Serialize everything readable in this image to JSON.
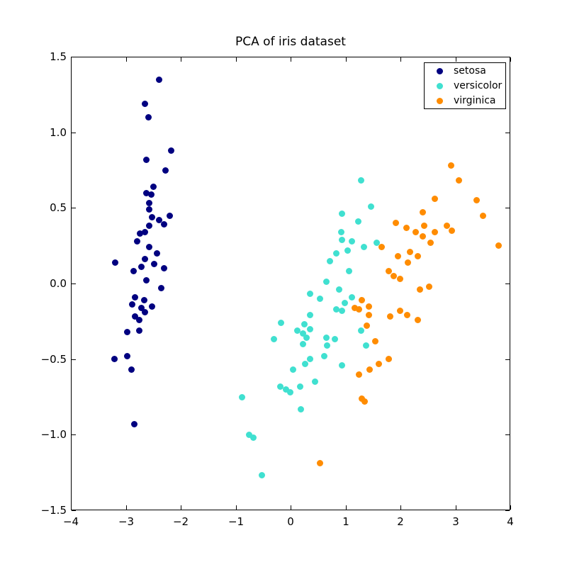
{
  "title": "PCA of iris dataset",
  "colors": {
    "background": "#ffffff",
    "spine": "#000000",
    "text": "#000000",
    "setosa": "#000080",
    "versicolor": "#40e0d0",
    "virginica": "#ff8c00"
  },
  "chart_data": {
    "type": "scatter",
    "title": "PCA of iris dataset",
    "xlabel": "",
    "ylabel": "",
    "xlim": [
      -4,
      4
    ],
    "ylim": [
      -1.5,
      1.5
    ],
    "grid": false,
    "x_ticks": [
      -4,
      -3,
      -2,
      -1,
      0,
      1,
      2,
      3,
      4
    ],
    "x_tick_labels": [
      "−4",
      "−3",
      "−2",
      "−1",
      "0",
      "1",
      "2",
      "3",
      "4"
    ],
    "y_ticks": [
      1.5,
      1.0,
      0.5,
      0.0,
      -0.5,
      -1.0,
      -1.5
    ],
    "y_tick_labels": [
      "1.5",
      "1.0",
      "0.5",
      "0.0",
      "−0.5",
      "−1.0",
      "−1.5"
    ],
    "legend": {
      "position": "upper right"
    },
    "series": [
      {
        "name": "setosa",
        "color": "#000080",
        "points": [
          [
            -2.4,
            1.35
          ],
          [
            -2.65,
            1.19
          ],
          [
            -2.59,
            1.1
          ],
          [
            -2.17,
            0.88
          ],
          [
            -2.63,
            0.82
          ],
          [
            -2.28,
            0.75
          ],
          [
            -2.5,
            0.64
          ],
          [
            -2.62,
            0.6
          ],
          [
            -2.54,
            0.59
          ],
          [
            -2.57,
            0.53
          ],
          [
            -2.57,
            0.49
          ],
          [
            -2.52,
            0.44
          ],
          [
            -2.39,
            0.42
          ],
          [
            -2.2,
            0.45
          ],
          [
            -2.3,
            0.39
          ],
          [
            -2.57,
            0.38
          ],
          [
            -2.74,
            0.33
          ],
          [
            -2.65,
            0.34
          ],
          [
            -2.79,
            0.28
          ],
          [
            -2.58,
            0.24
          ],
          [
            -2.43,
            0.2
          ],
          [
            -2.65,
            0.16
          ],
          [
            -3.2,
            0.14
          ],
          [
            -2.48,
            0.13
          ],
          [
            -2.71,
            0.11
          ],
          [
            -2.3,
            0.1
          ],
          [
            -2.86,
            0.08
          ],
          [
            -2.62,
            0.02
          ],
          [
            -2.36,
            -0.03
          ],
          [
            -2.83,
            -0.09
          ],
          [
            -2.67,
            -0.11
          ],
          [
            -2.88,
            -0.14
          ],
          [
            -2.52,
            -0.15
          ],
          [
            -2.71,
            -0.16
          ],
          [
            -2.65,
            -0.19
          ],
          [
            -2.83,
            -0.22
          ],
          [
            -2.75,
            -0.24
          ],
          [
            -2.76,
            -0.31
          ],
          [
            -2.98,
            -0.32
          ],
          [
            -3.21,
            -0.5
          ],
          [
            -2.98,
            -0.48
          ],
          [
            -2.9,
            -0.57
          ],
          [
            -2.85,
            -0.93
          ]
        ]
      },
      {
        "name": "versicolor",
        "color": "#40e0d0",
        "points": [
          [
            1.29,
            0.68
          ],
          [
            1.47,
            0.51
          ],
          [
            0.93,
            0.46
          ],
          [
            1.23,
            0.41
          ],
          [
            0.92,
            0.34
          ],
          [
            0.93,
            0.29
          ],
          [
            1.11,
            0.28
          ],
          [
            1.57,
            0.27
          ],
          [
            1.33,
            0.24
          ],
          [
            1.04,
            0.22
          ],
          [
            0.83,
            0.2
          ],
          [
            0.72,
            0.15
          ],
          [
            1.07,
            0.08
          ],
          [
            0.65,
            0.01
          ],
          [
            0.89,
            -0.04
          ],
          [
            0.36,
            -0.07
          ],
          [
            1.12,
            -0.09
          ],
          [
            0.53,
            -0.1
          ],
          [
            0.99,
            -0.13
          ],
          [
            0.83,
            -0.17
          ],
          [
            0.93,
            -0.18
          ],
          [
            0.35,
            -0.21
          ],
          [
            -0.18,
            -0.26
          ],
          [
            0.25,
            -0.27
          ],
          [
            0.35,
            -0.3
          ],
          [
            0.12,
            -0.31
          ],
          [
            1.29,
            -0.31
          ],
          [
            0.23,
            -0.33
          ],
          [
            0.29,
            -0.36
          ],
          [
            -0.3,
            -0.37
          ],
          [
            0.65,
            -0.36
          ],
          [
            0.81,
            -0.37
          ],
          [
            0.23,
            -0.4
          ],
          [
            1.38,
            -0.41
          ],
          [
            0.66,
            -0.41
          ],
          [
            0.35,
            -0.5
          ],
          [
            0.61,
            -0.48
          ],
          [
            0.27,
            -0.53
          ],
          [
            0.04,
            -0.57
          ],
          [
            0.94,
            -0.54
          ],
          [
            0.45,
            -0.65
          ],
          [
            -0.19,
            -0.68
          ],
          [
            0.17,
            -0.68
          ],
          [
            -0.08,
            -0.7
          ],
          [
            -0.01,
            -0.72
          ],
          [
            -0.89,
            -0.75
          ],
          [
            0.19,
            -0.83
          ],
          [
            -0.76,
            -1.0
          ],
          [
            -0.68,
            -1.02
          ],
          [
            -0.52,
            -1.27
          ]
        ]
      },
      {
        "name": "virginica",
        "color": "#ff8c00",
        "points": [
          [
            2.92,
            0.78
          ],
          [
            3.07,
            0.68
          ],
          [
            2.63,
            0.56
          ],
          [
            3.39,
            0.55
          ],
          [
            2.4,
            0.47
          ],
          [
            3.5,
            0.45
          ],
          [
            1.92,
            0.4
          ],
          [
            2.43,
            0.38
          ],
          [
            2.85,
            0.38
          ],
          [
            2.11,
            0.37
          ],
          [
            2.93,
            0.35
          ],
          [
            2.28,
            0.34
          ],
          [
            2.62,
            0.34
          ],
          [
            2.41,
            0.31
          ],
          [
            2.55,
            0.27
          ],
          [
            3.79,
            0.25
          ],
          [
            1.66,
            0.24
          ],
          [
            2.17,
            0.21
          ],
          [
            2.32,
            0.18
          ],
          [
            1.95,
            0.18
          ],
          [
            2.14,
            0.14
          ],
          [
            1.79,
            0.08
          ],
          [
            1.88,
            0.05
          ],
          [
            1.99,
            0.03
          ],
          [
            2.52,
            -0.02
          ],
          [
            2.35,
            -0.04
          ],
          [
            1.3,
            -0.11
          ],
          [
            1.43,
            -0.15
          ],
          [
            1.17,
            -0.16
          ],
          [
            1.25,
            -0.17
          ],
          [
            1.42,
            -0.21
          ],
          [
            1.81,
            -0.22
          ],
          [
            1.99,
            -0.18
          ],
          [
            2.12,
            -0.21
          ],
          [
            2.31,
            -0.24
          ],
          [
            1.39,
            -0.28
          ],
          [
            1.54,
            -0.38
          ],
          [
            1.79,
            -0.5
          ],
          [
            1.6,
            -0.53
          ],
          [
            1.44,
            -0.57
          ],
          [
            1.24,
            -0.6
          ],
          [
            1.3,
            -0.76
          ],
          [
            1.35,
            -0.78
          ],
          [
            0.53,
            -1.19
          ]
        ]
      }
    ]
  }
}
